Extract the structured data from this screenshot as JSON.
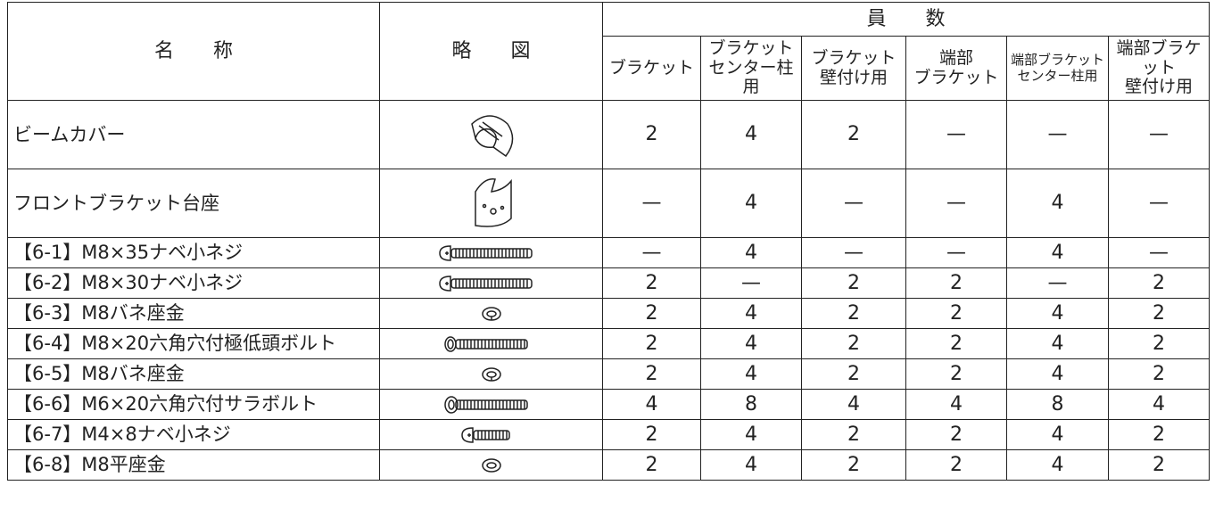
{
  "header": {
    "name": "名　　称",
    "sketch": "略　　図",
    "count": "員　　数",
    "columns": [
      "ブラケット",
      "ブラケット\nセンター柱用",
      "ブラケット\n壁付け用",
      "端部\nブラケット",
      "端部ブラケット\nセンター柱用",
      "端部ブラケット\n壁付け用"
    ]
  },
  "rows": [
    {
      "name": "ビームカバー",
      "values": [
        "2",
        "4",
        "2",
        "—",
        "—",
        "—"
      ]
    },
    {
      "name": "フロントブラケット台座",
      "values": [
        "—",
        "4",
        "—",
        "—",
        "4",
        "—"
      ]
    },
    {
      "name": "【6-1】M8×35ナベ小ネジ",
      "values": [
        "—",
        "4",
        "—",
        "—",
        "4",
        "—"
      ]
    },
    {
      "name": "【6-2】M8×30ナベ小ネジ",
      "values": [
        "2",
        "—",
        "2",
        "2",
        "—",
        "2"
      ]
    },
    {
      "name": "【6-3】M8バネ座金",
      "values": [
        "2",
        "4",
        "2",
        "2",
        "4",
        "2"
      ]
    },
    {
      "name": "【6-4】M8×20六角穴付極低頭ボルト",
      "values": [
        "2",
        "4",
        "2",
        "2",
        "4",
        "2"
      ]
    },
    {
      "name": "【6-5】M8バネ座金",
      "values": [
        "2",
        "4",
        "2",
        "2",
        "4",
        "2"
      ]
    },
    {
      "name": "【6-6】M6×20六角穴付サラボルト",
      "values": [
        "4",
        "8",
        "4",
        "4",
        "8",
        "4"
      ]
    },
    {
      "name": "【6-7】M4×8ナベ小ネジ",
      "values": [
        "2",
        "4",
        "2",
        "2",
        "4",
        "2"
      ]
    },
    {
      "name": "【6-8】M8平座金",
      "values": [
        "2",
        "4",
        "2",
        "2",
        "4",
        "2"
      ]
    }
  ]
}
